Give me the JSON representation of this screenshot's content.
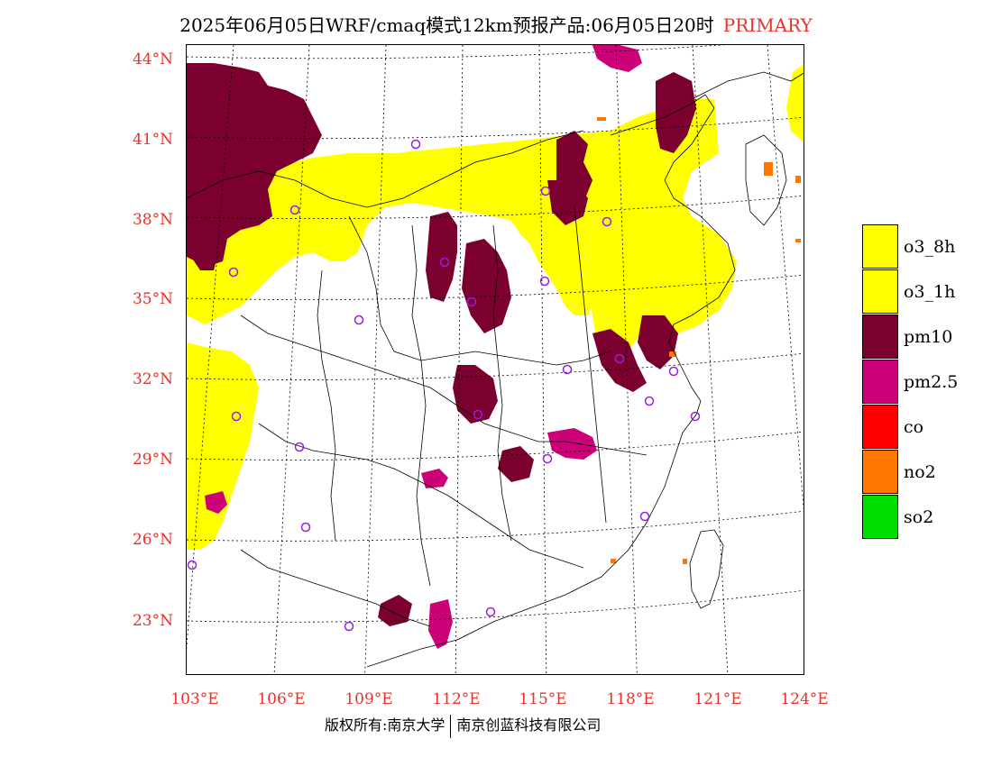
{
  "title": {
    "text": "2025年06月05日WRF/cmaq模式12km预报产品:06月05日20时",
    "tag": "PRIMARY",
    "tag_color": "#e8312a"
  },
  "lat_labels": [
    "44°N",
    "41°N",
    "38°N",
    "35°N",
    "32°N",
    "29°N",
    "26°N",
    "23°N"
  ],
  "lon_labels": [
    "103°E",
    "106°E",
    "109°E",
    "112°E",
    "115°E",
    "118°E",
    "121°E",
    "124°E"
  ],
  "legend": [
    {
      "name": "o3_8h",
      "color": "#ffff00"
    },
    {
      "name": "o3_1h",
      "color": "#ffff00"
    },
    {
      "name": "pm10",
      "color": "#7b0030"
    },
    {
      "name": "pm2.5",
      "color": "#cc0077"
    },
    {
      "name": "co",
      "color": "#ff0000"
    },
    {
      "name": "no2",
      "color": "#ff7700"
    },
    {
      "name": "so2",
      "color": "#00dd00"
    }
  ],
  "footer": {
    "left": "版权所有:南京大学",
    "right": "南京创蓝科技有限公司"
  },
  "map": {
    "lon_range": [
      102.7,
      124.0
    ],
    "lat_range": [
      21.7,
      44.5
    ],
    "colors": {
      "o3": "#ffff00",
      "pm10": "#7b0030",
      "pm25": "#cc0077",
      "no2": "#ff7700"
    }
  }
}
